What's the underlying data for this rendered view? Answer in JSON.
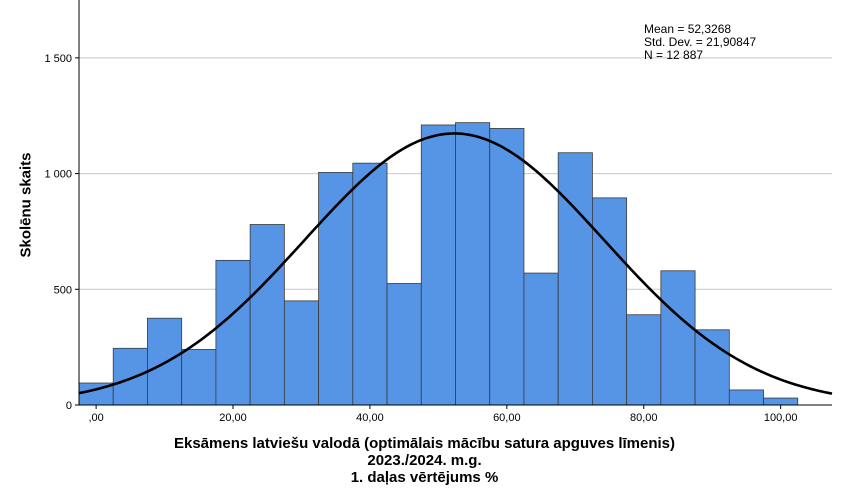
{
  "chart_data": {
    "type": "bar",
    "subtype": "histogram-with-normal-curve",
    "xlabel_lines": [
      "Eksāmens latviešu valodā (optimālais mācību satura apguves līmenis)",
      "2023./2024. m.g.",
      "1. daļas vērtējums %"
    ],
    "ylabel": "Skolēnu skaits",
    "stats": {
      "mean_label": "Mean = 52,3268",
      "std_label": "Std. Dev. = 21,90847",
      "n_label": "N = 12 887"
    },
    "mean": 52.3268,
    "std_dev": 21.90847,
    "n": 12887,
    "bin_width": 5,
    "xlim": [
      -2.5,
      107.5
    ],
    "ylim": [
      0,
      1750
    ],
    "x_ticks": [
      0,
      20,
      40,
      60,
      80,
      100
    ],
    "x_tick_labels": [
      ",00",
      "20,00",
      "40,00",
      "60,00",
      "80,00",
      "100,00"
    ],
    "y_ticks": [
      0,
      500,
      1000,
      1500
    ],
    "y_tick_labels": [
      "0",
      "500",
      "1 000",
      "1 500"
    ],
    "grid": "horizontal",
    "bar_color": "#5694e6",
    "bar_edge_color": "#3a3a3a",
    "curve_color": "#000000",
    "bins": [
      {
        "x_start": 0,
        "value": 95
      },
      {
        "x_start": 5,
        "value": 245
      },
      {
        "x_start": 10,
        "value": 375
      },
      {
        "x_start": 15,
        "value": 240
      },
      {
        "x_start": 20,
        "value": 625
      },
      {
        "x_start": 25,
        "value": 780
      },
      {
        "x_start": 30,
        "value": 450
      },
      {
        "x_start": 35,
        "value": 1005
      },
      {
        "x_start": 40,
        "value": 1045
      },
      {
        "x_start": 45,
        "value": 525
      },
      {
        "x_start": 50,
        "value": 1210
      },
      {
        "x_start": 55,
        "value": 1220
      },
      {
        "x_start": 60,
        "value": 1195
      },
      {
        "x_start": 65,
        "value": 570
      },
      {
        "x_start": 70,
        "value": 1090
      },
      {
        "x_start": 75,
        "value": 895
      },
      {
        "x_start": 80,
        "value": 390
      },
      {
        "x_start": 85,
        "value": 580
      },
      {
        "x_start": 90,
        "value": 325
      },
      {
        "x_start": 95,
        "value": 65
      },
      {
        "x_start": 100,
        "value": 30
      }
    ]
  }
}
